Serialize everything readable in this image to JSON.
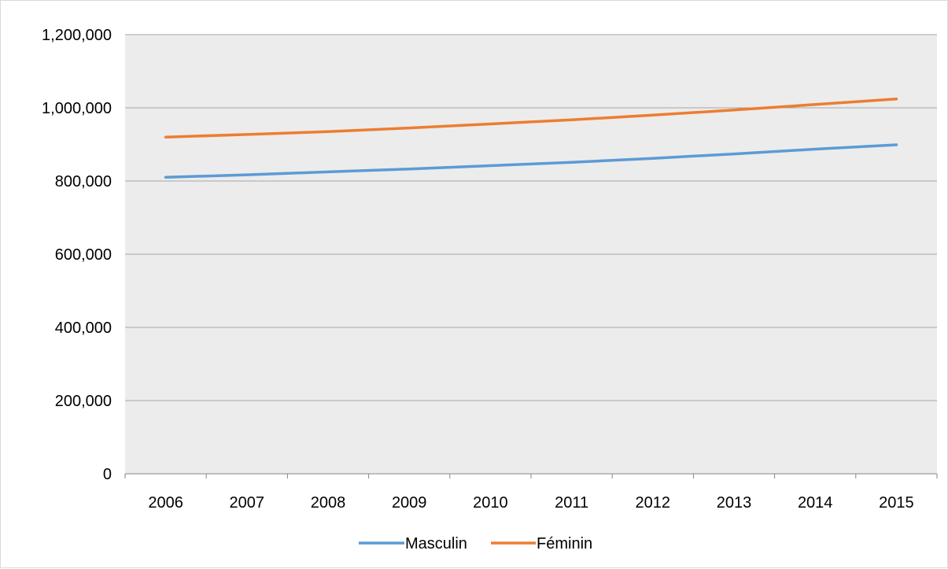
{
  "chart_data": {
    "type": "line",
    "title": "",
    "xlabel": "",
    "ylabel": "",
    "categories": [
      "2006",
      "2007",
      "2008",
      "2009",
      "2010",
      "2011",
      "2012",
      "2013",
      "2014",
      "2015"
    ],
    "ylim": [
      0,
      1200000
    ],
    "yticks": [
      0,
      200000,
      400000,
      600000,
      800000,
      1000000,
      1200000
    ],
    "ytick_labels": [
      "0",
      "200,000",
      "400,000",
      "600,000",
      "800,000",
      "1,000,000",
      "1,200,000"
    ],
    "grid": true,
    "legend_position": "bottom",
    "plot_background": "#ececec",
    "series": [
      {
        "name": "Masculin",
        "color": "#5b9bd5",
        "values": [
          810000,
          817000,
          825000,
          833000,
          842000,
          851000,
          862000,
          874000,
          887000,
          899000
        ]
      },
      {
        "name": "Féminin",
        "color": "#ed7d31",
        "values": [
          920000,
          927000,
          935000,
          945000,
          956000,
          967000,
          980000,
          994000,
          1009000,
          1024000
        ]
      }
    ]
  }
}
